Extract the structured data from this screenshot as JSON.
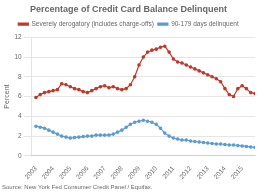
{
  "chart_data": {
    "type": "line",
    "title": "Percentage of Credit Card Balance Delinquent",
    "y_label": "Percent",
    "annotations": [
      {
        "text": "Source: New York Fed Consumer Credit Panel / Equifax."
      }
    ],
    "x": [
      2003.0,
      2003.25,
      2003.5,
      2003.75,
      2004.0,
      2004.25,
      2004.5,
      2004.75,
      2005.0,
      2005.25,
      2005.5,
      2005.75,
      2006.0,
      2006.25,
      2006.5,
      2006.75,
      2007.0,
      2007.25,
      2007.5,
      2007.75,
      2008.0,
      2008.25,
      2008.5,
      2008.75,
      2009.0,
      2009.25,
      2009.5,
      2009.75,
      2010.0,
      2010.25,
      2010.5,
      2010.75,
      2011.0,
      2011.25,
      2011.5,
      2011.75,
      2012.0,
      2012.25,
      2012.5,
      2012.75,
      2013.0,
      2013.25,
      2013.5,
      2013.75,
      2014.0,
      2014.25,
      2014.5,
      2014.75,
      2015.0,
      2015.25,
      2015.5,
      2015.75
    ],
    "series": [
      {
        "name": "Severely derogatory (includes charge-offs)",
        "color": "#c0392b",
        "marker": "circle",
        "values": [
          5.9,
          6.2,
          6.4,
          6.5,
          6.6,
          6.7,
          7.3,
          7.2,
          7.0,
          6.8,
          6.7,
          6.5,
          6.4,
          6.6,
          6.8,
          7.0,
          7.1,
          6.9,
          7.0,
          6.8,
          6.7,
          6.8,
          7.2,
          8.0,
          9.2,
          10.0,
          10.5,
          10.7,
          10.8,
          11.0,
          11.1,
          10.5,
          9.8,
          9.5,
          9.4,
          9.2,
          9.0,
          8.8,
          8.6,
          8.4,
          8.2,
          8.0,
          7.8,
          7.5,
          6.8,
          6.2,
          6.0,
          6.8,
          7.1,
          6.8,
          6.4,
          6.3
        ]
      },
      {
        "name": "90-179 days delinquent",
        "color": "#5b9bd5",
        "marker": "circle",
        "values": [
          3.0,
          2.9,
          2.8,
          2.6,
          2.4,
          2.2,
          2.0,
          1.9,
          1.8,
          1.85,
          1.9,
          1.95,
          2.0,
          2.0,
          2.1,
          2.1,
          2.1,
          2.1,
          2.2,
          2.4,
          2.6,
          2.9,
          3.2,
          3.4,
          3.5,
          3.6,
          3.5,
          3.4,
          3.2,
          2.8,
          2.3,
          2.0,
          1.8,
          1.7,
          1.6,
          1.6,
          1.5,
          1.45,
          1.4,
          1.35,
          1.3,
          1.25,
          1.2,
          1.2,
          1.15,
          1.1,
          1.1,
          1.05,
          1.0,
          0.95,
          0.9,
          0.85
        ]
      }
    ],
    "xlim": [
      2002.75,
      2015.75
    ],
    "xticks": [
      2003,
      2004,
      2005,
      2006,
      2007,
      2008,
      2009,
      2010,
      2011,
      2012,
      2013,
      2014,
      2015
    ],
    "ylim": [
      0,
      12
    ],
    "yticks": [
      0,
      2,
      4,
      6,
      8,
      10,
      12
    ],
    "grid": "y",
    "legend": "top"
  }
}
